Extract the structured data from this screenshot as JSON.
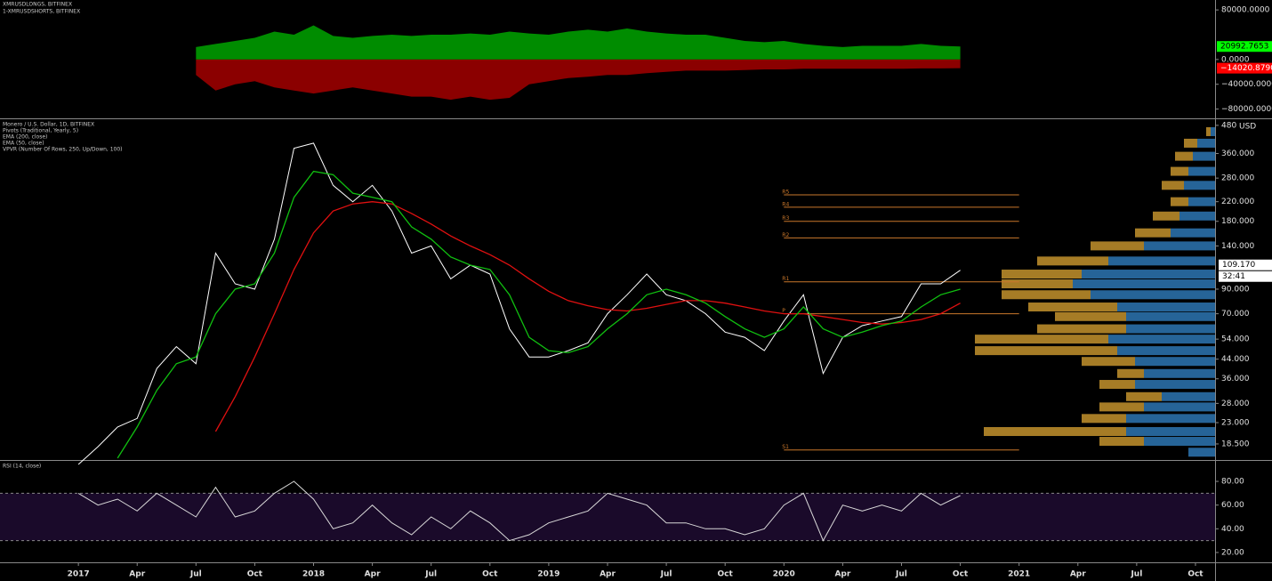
{
  "chart_data": [
    {
      "type": "area",
      "x": [
        "2017-07",
        "2017-08",
        "2017-09",
        "2017-10",
        "2017-11",
        "2017-12",
        "2018-01",
        "2018-02",
        "2018-03",
        "2018-04",
        "2018-05",
        "2018-06",
        "2018-07",
        "2018-08",
        "2018-09",
        "2018-10",
        "2018-11",
        "2018-12",
        "2019-01",
        "2019-02",
        "2019-03",
        "2019-04",
        "2019-05",
        "2019-06",
        "2019-07",
        "2019-08",
        "2019-09",
        "2019-10",
        "2019-11",
        "2019-12",
        "2020-01",
        "2020-02",
        "2020-03",
        "2020-04",
        "2020-05",
        "2020-06",
        "2020-07",
        "2020-08",
        "2020-09",
        "2020-10"
      ],
      "series": [
        {
          "name": "XMRUSDLONGS, BITFINEX",
          "color": "#008c00",
          "label_color": "#00ff00",
          "values": [
            20000,
            25000,
            30000,
            35000,
            45000,
            40000,
            55000,
            38000,
            35000,
            38000,
            40000,
            38000,
            40000,
            40000,
            42000,
            40000,
            45000,
            42000,
            40000,
            45000,
            48000,
            45000,
            50000,
            45000,
            42000,
            40000,
            40000,
            35000,
            30000,
            28000,
            30000,
            25000,
            22000,
            20000,
            22000,
            22000,
            22000,
            25000,
            22000,
            20992.7653
          ],
          "last_value_label": "20992.7653"
        },
        {
          "name": "1-XMRUSDSHORTS, BITFINEX",
          "color": "#8b0000",
          "label_color": "#ff0000",
          "values": [
            -25000,
            -50000,
            -40000,
            -35000,
            -45000,
            -50000,
            -55000,
            -50000,
            -45000,
            -50000,
            -55000,
            -60000,
            -60000,
            -65000,
            -60000,
            -65000,
            -62000,
            -40000,
            -35000,
            -30000,
            -28000,
            -25000,
            -25000,
            -22000,
            -20000,
            -18000,
            -18000,
            -18000,
            -17000,
            -16000,
            -16000,
            -15000,
            -15000,
            -15000,
            -15000,
            -15000,
            -15000,
            -14500,
            -14500,
            -14020.879
          ],
          "last_value_label": "−14020.8790"
        }
      ],
      "xlim": [
        "2016-09",
        "2021-11"
      ],
      "ylim": [
        -95000,
        96000
      ],
      "yticks": [
        {
          "value": 80000,
          "label": "80000.0000"
        },
        {
          "value": 0,
          "label": "0.0000"
        },
        {
          "value": -40000,
          "label": "−40000.0000"
        },
        {
          "value": -80000,
          "label": "−80000.0000"
        }
      ]
    },
    {
      "type": "line",
      "title": "Monero / U.S. Dollar, 1D, BITFINEX",
      "legend": [
        "Pivots (Traditional, Yearly, 5)"
      ],
      "vpvr_legend": "VPVR (Number Of Rows, 250, Up/Down, 100)",
      "unit": "USD",
      "log_scale": true,
      "x": [
        "2017-01",
        "2017-02",
        "2017-03",
        "2017-04",
        "2017-05",
        "2017-06",
        "2017-07",
        "2017-08",
        "2017-09",
        "2017-10",
        "2017-11",
        "2017-12",
        "2018-01",
        "2018-02",
        "2018-03",
        "2018-04",
        "2018-05",
        "2018-06",
        "2018-07",
        "2018-08",
        "2018-09",
        "2018-10",
        "2018-11",
        "2018-12",
        "2019-01",
        "2019-02",
        "2019-03",
        "2019-04",
        "2019-05",
        "2019-06",
        "2019-07",
        "2019-08",
        "2019-09",
        "2019-10",
        "2019-11",
        "2019-12",
        "2020-01",
        "2020-02",
        "2020-03",
        "2020-04",
        "2020-05",
        "2020-06",
        "2020-07",
        "2020-08",
        "2020-09",
        "2020-10"
      ],
      "series": [
        {
          "color": "#ffffff",
          "values": [
            15,
            18,
            22,
            24,
            40,
            50,
            42,
            130,
            95,
            90,
            150,
            380,
            400,
            260,
            220,
            260,
            200,
            130,
            140,
            100,
            115,
            105,
            60,
            45,
            45,
            48,
            52,
            70,
            85,
            105,
            85,
            80,
            70,
            58,
            55,
            48,
            65,
            85,
            38,
            55,
            62,
            65,
            68,
            95,
            95,
            109.17
          ]
        },
        {
          "name": "EMA (200, close)",
          "color": "#e01010",
          "values": [
            null,
            null,
            null,
            null,
            null,
            null,
            null,
            21,
            30,
            45,
            70,
            110,
            160,
            200,
            215,
            220,
            215,
            195,
            175,
            155,
            140,
            128,
            115,
            100,
            88,
            80,
            76,
            73,
            72,
            74,
            77,
            80,
            80,
            78,
            75,
            72,
            70,
            70,
            68,
            66,
            64,
            63,
            64,
            66,
            70,
            78
          ]
        },
        {
          "name": "EMA (50, close)",
          "color": "#10c010",
          "values": [
            null,
            null,
            16,
            22,
            32,
            42,
            45,
            70,
            90,
            95,
            130,
            230,
            300,
            290,
            240,
            230,
            220,
            170,
            150,
            125,
            115,
            110,
            85,
            55,
            48,
            47,
            50,
            60,
            70,
            85,
            90,
            85,
            78,
            68,
            60,
            55,
            60,
            75,
            60,
            55,
            58,
            62,
            65,
            75,
            85,
            90
          ]
        }
      ],
      "last_value_label": "109.170",
      "countdown": "32:41",
      "xlim": [
        "2016-09",
        "2021-11"
      ],
      "ylim": [
        15.7,
        511
      ],
      "yticks": [
        {
          "value": 480,
          "label": "480"
        },
        {
          "value": 360,
          "label": "360.000"
        },
        {
          "value": 280,
          "label": "280.000"
        },
        {
          "value": 220,
          "label": "220.000"
        },
        {
          "value": 180,
          "label": "180.000"
        },
        {
          "value": 140,
          "label": "140.000"
        },
        {
          "value": 90,
          "label": "90.000"
        },
        {
          "value": 70,
          "label": "70.000"
        },
        {
          "value": 54,
          "label": "54.000"
        },
        {
          "value": 44,
          "label": "44.000"
        },
        {
          "value": 36,
          "label": "36.000"
        },
        {
          "value": 28,
          "label": "28.000"
        },
        {
          "value": 23,
          "label": "23.000"
        },
        {
          "value": 18.5,
          "label": "18.500"
        }
      ],
      "pivots": {
        "labels": [
          "R5",
          "R4",
          "R3",
          "R2",
          "R1",
          "P",
          "S1"
        ],
        "values": [
          236,
          208,
          180,
          152,
          97,
          70,
          17.4
        ],
        "color": "#c9772b",
        "start": "2020-01",
        "end": "2021-01"
      },
      "volume_profile": {
        "up_color": "#2a6fa8",
        "down_color": "#b8892a",
        "prices": [
          450,
          400,
          350,
          300,
          260,
          220,
          190,
          160,
          140,
          120,
          105,
          95,
          85,
          75,
          68,
          60,
          54,
          48,
          43,
          38,
          34,
          30,
          27,
          24,
          21,
          19,
          17
        ],
        "up": [
          5,
          20,
          25,
          30,
          35,
          30,
          40,
          50,
          80,
          120,
          150,
          160,
          140,
          110,
          100,
          100,
          120,
          110,
          90,
          80,
          90,
          60,
          80,
          100,
          100,
          80,
          30
        ],
        "down": [
          5,
          15,
          20,
          20,
          25,
          20,
          30,
          40,
          60,
          80,
          90,
          80,
          100,
          100,
          80,
          100,
          150,
          160,
          60,
          30,
          40,
          40,
          50,
          50,
          160,
          50,
          0
        ]
      }
    },
    {
      "type": "line",
      "title": "RSI (14, close)",
      "x": [
        "2017-01",
        "2017-02",
        "2017-03",
        "2017-04",
        "2017-05",
        "2017-06",
        "2017-07",
        "2017-08",
        "2017-09",
        "2017-10",
        "2017-11",
        "2017-12",
        "2018-01",
        "2018-02",
        "2018-03",
        "2018-04",
        "2018-05",
        "2018-06",
        "2018-07",
        "2018-08",
        "2018-09",
        "2018-10",
        "2018-11",
        "2018-12",
        "2019-01",
        "2019-02",
        "2019-03",
        "2019-04",
        "2019-05",
        "2019-06",
        "2019-07",
        "2019-08",
        "2019-09",
        "2019-10",
        "2019-11",
        "2019-12",
        "2020-01",
        "2020-02",
        "2020-03",
        "2020-04",
        "2020-05",
        "2020-06",
        "2020-07",
        "2020-08",
        "2020-09",
        "2020-10"
      ],
      "color": "#d8d8d8",
      "values": [
        70,
        60,
        65,
        55,
        70,
        60,
        50,
        75,
        50,
        55,
        70,
        80,
        65,
        40,
        45,
        60,
        45,
        35,
        50,
        40,
        55,
        45,
        30,
        35,
        45,
        50,
        55,
        70,
        65,
        60,
        45,
        45,
        40,
        40,
        35,
        40,
        60,
        70,
        30,
        60,
        55,
        60,
        55,
        70,
        60,
        68
      ],
      "bands": [
        70,
        30
      ],
      "band_color": "#1a0a2a",
      "xlim": [
        "2016-09",
        "2021-11"
      ],
      "ylim": [
        11.7,
        97.3
      ],
      "yticks": [
        {
          "value": 80,
          "label": "80.00"
        },
        {
          "value": 60,
          "label": "60.00"
        },
        {
          "value": 40,
          "label": "40.00"
        },
        {
          "value": 20,
          "label": "20.00"
        }
      ],
      "xticks": [
        {
          "value": "2017-01",
          "label": "2017"
        },
        {
          "value": "2017-04",
          "label": "Apr"
        },
        {
          "value": "2017-07",
          "label": "Jul"
        },
        {
          "value": "2017-10",
          "label": "Oct"
        },
        {
          "value": "2018-01",
          "label": "2018"
        },
        {
          "value": "2018-04",
          "label": "Apr"
        },
        {
          "value": "2018-07",
          "label": "Jul"
        },
        {
          "value": "2018-10",
          "label": "Oct"
        },
        {
          "value": "2019-01",
          "label": "2019"
        },
        {
          "value": "2019-04",
          "label": "Apr"
        },
        {
          "value": "2019-07",
          "label": "Jul"
        },
        {
          "value": "2019-10",
          "label": "Oct"
        },
        {
          "value": "2020-01",
          "label": "2020"
        },
        {
          "value": "2020-04",
          "label": "Apr"
        },
        {
          "value": "2020-07",
          "label": "Jul"
        },
        {
          "value": "2020-10",
          "label": "Oct"
        },
        {
          "value": "2021-01",
          "label": "2021"
        },
        {
          "value": "2021-04",
          "label": "Apr"
        },
        {
          "value": "2021-07",
          "label": "Jul"
        },
        {
          "value": "2021-10",
          "label": "Oct"
        }
      ]
    }
  ]
}
